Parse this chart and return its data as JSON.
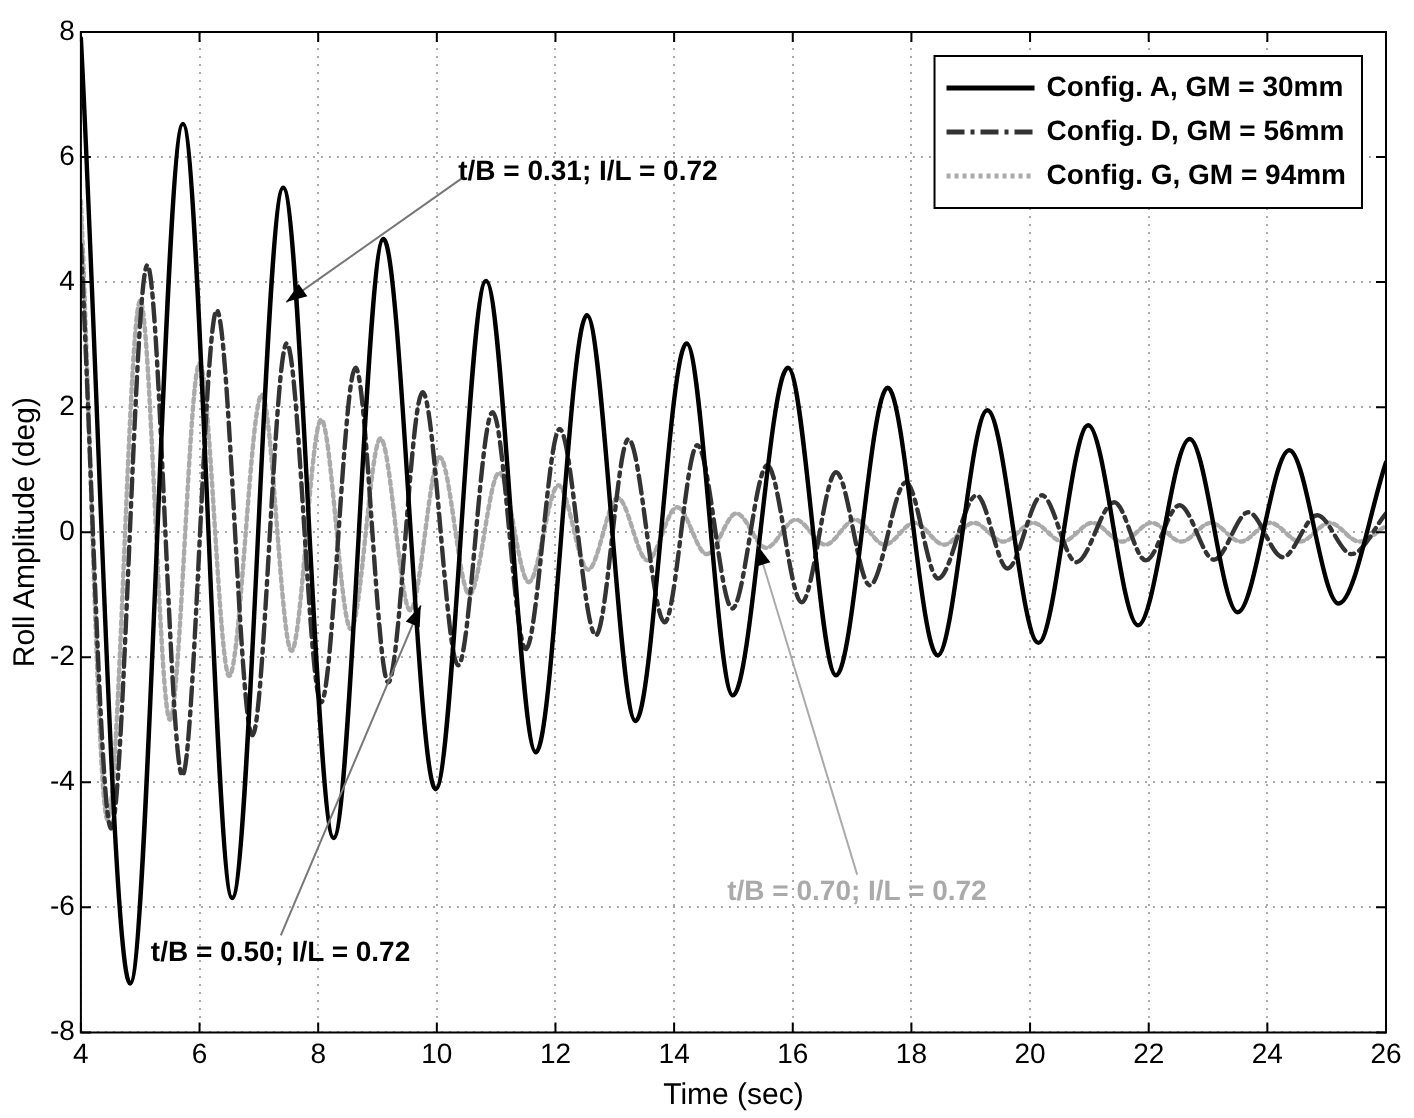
{
  "chart_data": {
    "type": "line",
    "xlabel": "Time (sec)",
    "ylabel": "Roll Amplitude (deg)",
    "xlim": [
      4,
      26
    ],
    "xticks": [
      4,
      6,
      8,
      10,
      12,
      14,
      16,
      18,
      20,
      22,
      24,
      26
    ],
    "ylim": [
      -8,
      8
    ],
    "yticks": [
      -8,
      -6,
      -4,
      -2,
      0,
      2,
      4,
      6,
      8
    ],
    "grid": true,
    "legend": "top right",
    "marker": "none",
    "series": [
      {
        "name": "Config. A, GM = 30mm",
        "color": "#000000",
        "line_style": "solid",
        "x": [
          4,
          4.83,
          5.72,
          6.55,
          7.41,
          8.26,
          9.1,
          9.98,
          10.83,
          11.67,
          12.53,
          13.35,
          14.21,
          14.99,
          15.92,
          16.73,
          17.6,
          18.44,
          19.28,
          20.14,
          20.98,
          21.82,
          22.69,
          23.5,
          24.37,
          25.2,
          26
        ],
        "values": [
          7.9,
          -7.22,
          6.53,
          -5.85,
          5.51,
          -4.89,
          4.69,
          -4.11,
          4.02,
          -3.52,
          3.47,
          -3.02,
          3.02,
          -2.61,
          2.63,
          -2.29,
          2.31,
          -1.97,
          1.95,
          -1.77,
          1.71,
          -1.49,
          1.49,
          -1.28,
          1.31,
          -1.14,
          1.12
        ]
      },
      {
        "name": "Config. D, GM = 56mm",
        "color": "#333333",
        "line_style": "dashed",
        "x": [
          4,
          4.51,
          5.12,
          5.71,
          6.29,
          6.89,
          7.47,
          8.05,
          8.63,
          9.18,
          9.76,
          10.36,
          10.94,
          11.5,
          12.07,
          12.68,
          13.23,
          13.84,
          14.39,
          14.98,
          15.57,
          16.15,
          16.73,
          17.3,
          17.91,
          18.45,
          19.1,
          19.62,
          20.2,
          20.78,
          21.42,
          21.95,
          22.52,
          23.1,
          23.68,
          24.26,
          24.84,
          25.42,
          26
        ],
        "values": [
          4.6,
          -4.74,
          4.27,
          -3.89,
          3.55,
          -3.25,
          3.02,
          -2.72,
          2.63,
          -2.4,
          2.24,
          -2.13,
          1.92,
          -1.87,
          1.65,
          -1.65,
          1.49,
          -1.44,
          1.39,
          -1.22,
          1.07,
          -1.12,
          0.96,
          -0.85,
          0.8,
          -0.74,
          0.59,
          -0.58,
          0.59,
          -0.48,
          0.48,
          -0.45,
          0.43,
          -0.44,
          0.32,
          -0.4,
          0.27,
          -0.35,
          0.3
        ]
      },
      {
        "name": "Config. G, GM = 94mm",
        "color": "#aaaaaa",
        "line_style": "dotted",
        "x": [
          4,
          4.45,
          5.0,
          5.5,
          6.0,
          6.5,
          7.05,
          7.55,
          8.05,
          8.55,
          9.05,
          9.55,
          10.05,
          10.55,
          11.05,
          11.55,
          12.05,
          12.55,
          13.05,
          13.55,
          14.05,
          14.55,
          15.05,
          15.55,
          16.05,
          16.55,
          17.05,
          17.55,
          18.05,
          18.55,
          19.05,
          19.55,
          20.05,
          20.55,
          21.05,
          21.55,
          22.05,
          22.55,
          23.05,
          23.55,
          24.05,
          24.55,
          25.05,
          25.55,
          26
        ],
        "values": [
          5.3,
          -4.6,
          3.7,
          -3.0,
          2.7,
          -2.3,
          2.2,
          -1.9,
          1.8,
          -1.55,
          1.5,
          -1.25,
          1.2,
          -1.0,
          0.95,
          -0.8,
          0.75,
          -0.6,
          0.55,
          -0.45,
          0.4,
          -0.35,
          0.3,
          -0.25,
          0.2,
          -0.2,
          0.2,
          -0.2,
          0.15,
          -0.2,
          0.15,
          -0.15,
          0.15,
          -0.15,
          0.15,
          -0.15,
          0.15,
          -0.15,
          0.15,
          -0.15,
          0.15,
          -0.15,
          0.15,
          -0.15,
          0.1
        ]
      }
    ],
    "annotations": [
      {
        "text": "t/B = 0.31; I/L = 0.72",
        "x": 7.46,
        "y": 3.68
      },
      {
        "text": "t/B = 0.50; I/L = 0.72",
        "x": 9.73,
        "y": -1.17
      },
      {
        "text": "t/B = 0.70; I/L = 0.72",
        "x": 15.4,
        "y": -0.2
      }
    ]
  }
}
